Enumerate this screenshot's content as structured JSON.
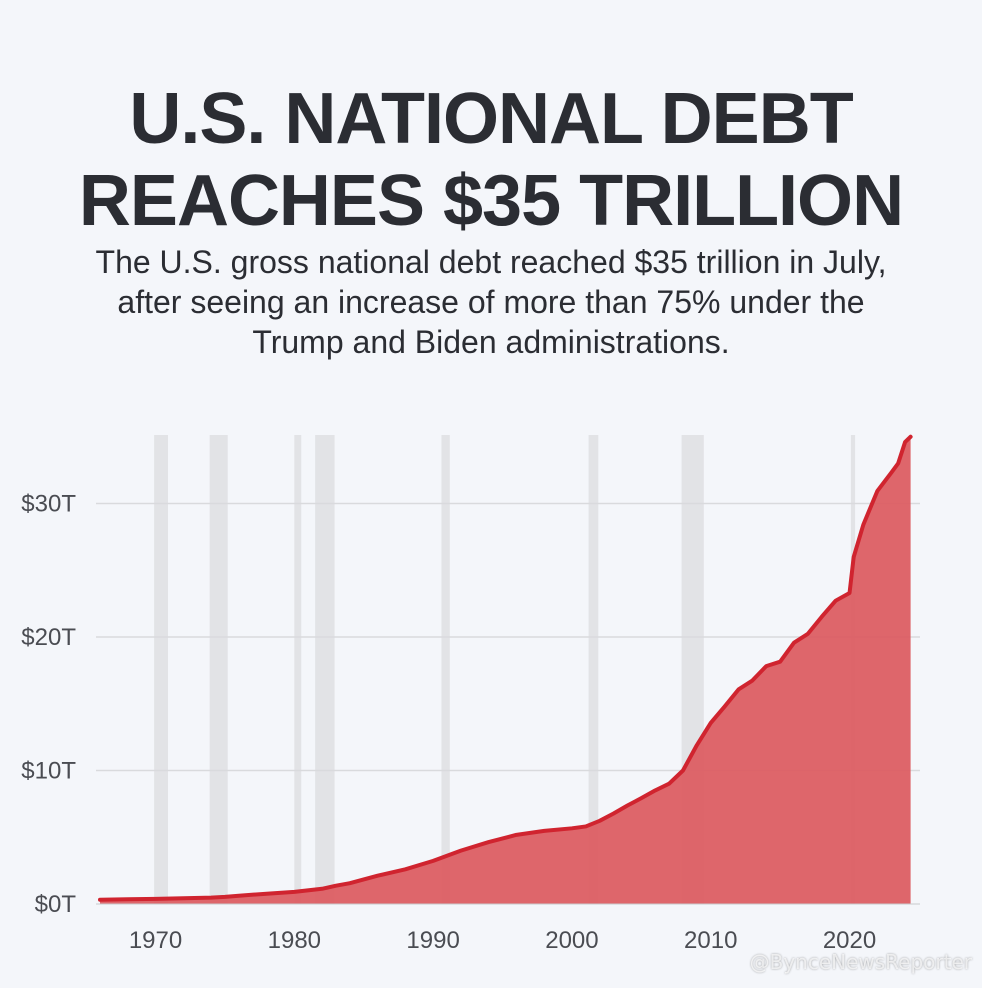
{
  "title_line1": "U.S. NATIONAL DEBT",
  "title_line2": "REACHES $35 TRILLION",
  "subtitle_lines": [
    "The U.S. gross national debt reached $35 trillion in July,",
    "after seeing an increase of more than 75% under the",
    "Trump and Biden administrations."
  ],
  "watermark": "@BynceNewsReporter",
  "colors": {
    "line": "#d0242f",
    "area": "#dc5e63",
    "recession_band": "#e2e3e6",
    "grid": "#d9dadd"
  },
  "chart_data": {
    "type": "area",
    "title": "U.S. NATIONAL DEBT REACHES $35 TRILLION",
    "xlabel": "",
    "ylabel": "",
    "xlim": [
      1966,
      2024.5
    ],
    "ylim": [
      0,
      35
    ],
    "x_ticks": [
      1970,
      1980,
      1990,
      2000,
      2010,
      2020
    ],
    "y_ticks": [
      0,
      10,
      20,
      30
    ],
    "y_tick_labels": [
      "$0T",
      "$10T",
      "$20T",
      "$30T"
    ],
    "grid": "horizontal",
    "recession_bands": [
      [
        1969.9,
        1970.9
      ],
      [
        1973.9,
        1975.2
      ],
      [
        1980.0,
        1980.5
      ],
      [
        1981.5,
        1982.9
      ],
      [
        1990.6,
        1991.2
      ],
      [
        2001.2,
        2001.9
      ],
      [
        2007.9,
        2009.5
      ],
      [
        2020.1,
        2020.4
      ]
    ],
    "series": [
      {
        "values_unit": "trillions of dollars",
        "points": [
          [
            1966,
            0.32
          ],
          [
            1968,
            0.36
          ],
          [
            1970,
            0.38
          ],
          [
            1972,
            0.43
          ],
          [
            1974,
            0.48
          ],
          [
            1975,
            0.53
          ],
          [
            1976,
            0.62
          ],
          [
            1978,
            0.77
          ],
          [
            1980,
            0.91
          ],
          [
            1982,
            1.14
          ],
          [
            1983,
            1.37
          ],
          [
            1984,
            1.56
          ],
          [
            1986,
            2.12
          ],
          [
            1988,
            2.6
          ],
          [
            1990,
            3.23
          ],
          [
            1992,
            4.0
          ],
          [
            1994,
            4.64
          ],
          [
            1996,
            5.18
          ],
          [
            1998,
            5.48
          ],
          [
            2000,
            5.67
          ],
          [
            2001,
            5.81
          ],
          [
            2002,
            6.23
          ],
          [
            2003,
            6.78
          ],
          [
            2004,
            7.38
          ],
          [
            2005,
            7.93
          ],
          [
            2006,
            8.51
          ],
          [
            2007,
            9.01
          ],
          [
            2008,
            10.0
          ],
          [
            2009,
            11.9
          ],
          [
            2010,
            13.56
          ],
          [
            2011,
            14.79
          ],
          [
            2012,
            16.07
          ],
          [
            2013,
            16.74
          ],
          [
            2014,
            17.82
          ],
          [
            2015,
            18.15
          ],
          [
            2016,
            19.57
          ],
          [
            2017,
            20.24
          ],
          [
            2018,
            21.52
          ],
          [
            2019,
            22.72
          ],
          [
            2020,
            23.3
          ],
          [
            2020.3,
            26.0
          ],
          [
            2021,
            28.43
          ],
          [
            2022,
            30.93
          ],
          [
            2023,
            32.3
          ],
          [
            2023.5,
            33.0
          ],
          [
            2024,
            34.6
          ],
          [
            2024.4,
            35.0
          ]
        ]
      }
    ]
  }
}
